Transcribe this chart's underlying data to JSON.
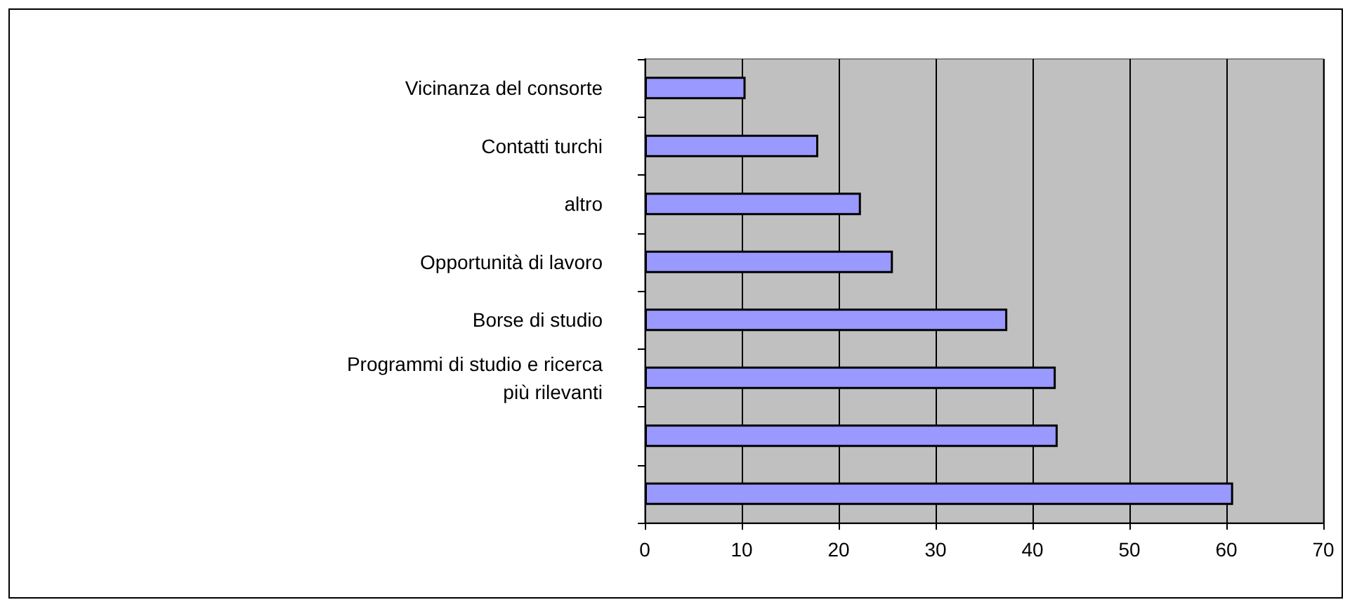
{
  "chart_data": {
    "type": "bar",
    "orientation": "horizontal",
    "categories": [
      "Vicinanza del consorte",
      "Contatti turchi",
      "altro",
      "Opportunità di lavoro",
      "Borse di studio",
      "Programmi di studio e ricerca\n più rilevanti",
      null,
      null
    ],
    "values": [
      10.4,
      17.9,
      22.3,
      25.6,
      37.4,
      42.4,
      42.6,
      60.7
    ],
    "color": "#9999ff",
    "xlim": [
      0,
      70
    ],
    "xticks": [
      0,
      10,
      20,
      30,
      40,
      50,
      60,
      70
    ],
    "grid": "x"
  }
}
